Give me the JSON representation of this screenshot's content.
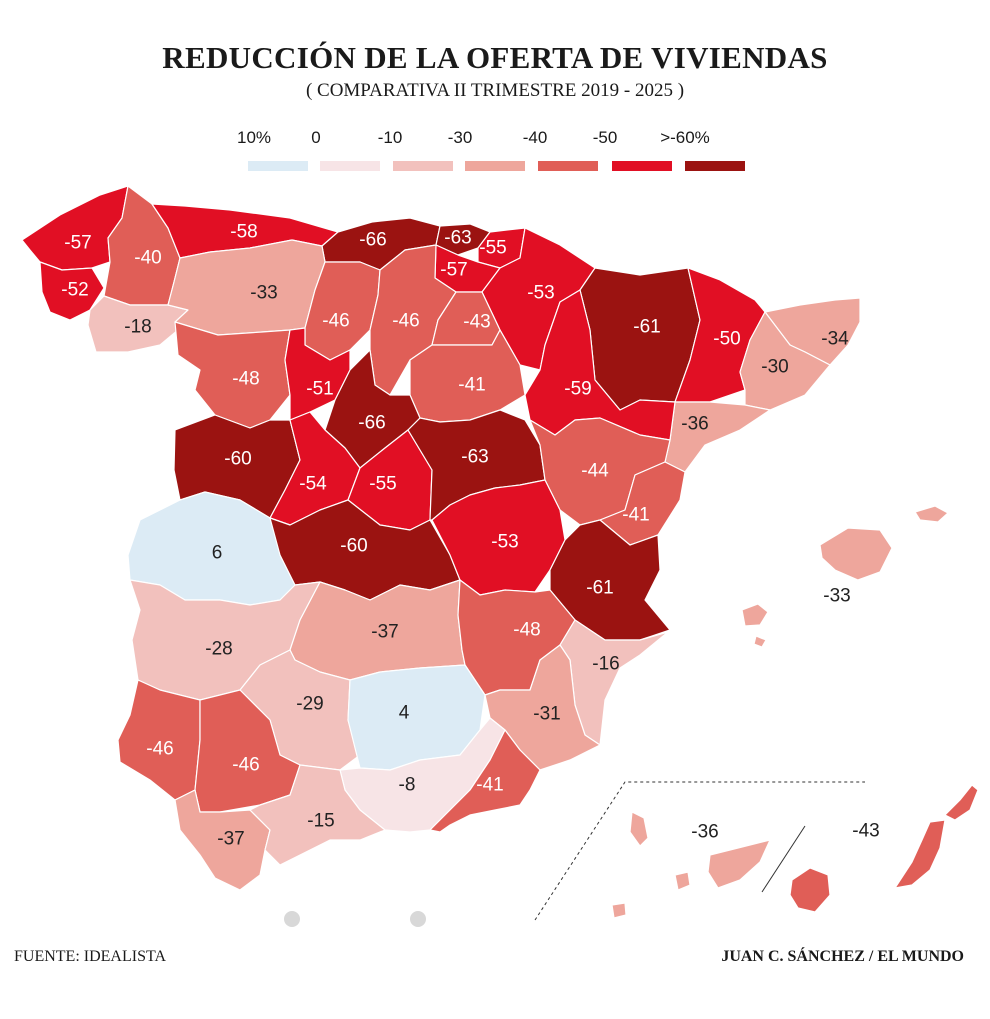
{
  "title": "REDUCCIÓN DE LA OFERTA DE VIVIENDAS",
  "subtitle": "( COMPARATIVA II TRIMESTRE 2019 - 2025 )",
  "legend": {
    "labels": [
      "10%",
      "0",
      "-10",
      "-30",
      "-40",
      "-50",
      ">-60%"
    ],
    "colors": [
      "#dcebf5",
      "#f7e4e6",
      "#f2c1bd",
      "#eea69c",
      "#e05e57",
      "#e10f24",
      "#9b1311"
    ]
  },
  "regions": [
    {
      "id": "coruna",
      "value": "-57",
      "color": "#e10f24"
    },
    {
      "id": "lugo",
      "value": "-40",
      "color": "#e05e57"
    },
    {
      "id": "asturias",
      "value": "-58",
      "color": "#e10f24"
    },
    {
      "id": "cantabria",
      "value": "-66",
      "color": "#9b1311"
    },
    {
      "id": "vizcaya",
      "value": "-63",
      "color": "#9b1311"
    },
    {
      "id": "guipuzcoa",
      "value": "-55",
      "color": "#e10f24"
    },
    {
      "id": "alava",
      "value": "-57",
      "color": "#e10f24"
    },
    {
      "id": "navarra",
      "value": "-53",
      "color": "#e10f24"
    },
    {
      "id": "pontevedra",
      "value": "-52",
      "color": "#e10f24"
    },
    {
      "id": "orense",
      "value": "-18",
      "color": "#f2c1bd"
    },
    {
      "id": "leon",
      "value": "-33",
      "color": "#eea69c"
    },
    {
      "id": "palencia",
      "value": "-46",
      "color": "#e05e57"
    },
    {
      "id": "burgos",
      "value": "-46",
      "color": "#e05e57"
    },
    {
      "id": "larioja",
      "value": "-43",
      "color": "#e05e57"
    },
    {
      "id": "huesca",
      "value": "-61",
      "color": "#9b1311"
    },
    {
      "id": "lleida",
      "value": "-50",
      "color": "#e10f24"
    },
    {
      "id": "girona",
      "value": "-34",
      "color": "#eea69c"
    },
    {
      "id": "barcelona",
      "value": "-30",
      "color": "#eea69c"
    },
    {
      "id": "zamora",
      "value": "-48",
      "color": "#e05e57"
    },
    {
      "id": "valladolid",
      "value": "-51",
      "color": "#e10f24"
    },
    {
      "id": "soria",
      "value": "-41",
      "color": "#e05e57"
    },
    {
      "id": "zaragoza",
      "value": "-59",
      "color": "#e10f24"
    },
    {
      "id": "tarragona",
      "value": "-36",
      "color": "#eea69c"
    },
    {
      "id": "salamanca",
      "value": "-60",
      "color": "#9b1311"
    },
    {
      "id": "segovia",
      "value": "-66",
      "color": "#9b1311"
    },
    {
      "id": "avila",
      "value": "-54",
      "color": "#e10f24"
    },
    {
      "id": "madrid",
      "value": "-55",
      "color": "#e10f24"
    },
    {
      "id": "guadalajara",
      "value": "-63",
      "color": "#9b1311"
    },
    {
      "id": "teruel",
      "value": "-44",
      "color": "#e05e57"
    },
    {
      "id": "castellon",
      "value": "-41",
      "color": "#e05e57"
    },
    {
      "id": "caceres",
      "value": "6",
      "color": "#dcebf5"
    },
    {
      "id": "toledo",
      "value": "-60",
      "color": "#9b1311"
    },
    {
      "id": "cuenca",
      "value": "-53",
      "color": "#e10f24"
    },
    {
      "id": "valencia",
      "value": "-61",
      "color": "#9b1311"
    },
    {
      "id": "badajoz",
      "value": "-28",
      "color": "#f2c1bd"
    },
    {
      "id": "ciudadreal",
      "value": "-37",
      "color": "#eea69c"
    },
    {
      "id": "albacete",
      "value": "-48",
      "color": "#e05e57"
    },
    {
      "id": "alicante",
      "value": "-16",
      "color": "#f2c1bd"
    },
    {
      "id": "cordoba",
      "value": "-29",
      "color": "#f2c1bd"
    },
    {
      "id": "jaen",
      "value": "4",
      "color": "#dcebf5"
    },
    {
      "id": "murcia",
      "value": "-31",
      "color": "#eea69c"
    },
    {
      "id": "huelva",
      "value": "-46",
      "color": "#e05e57"
    },
    {
      "id": "sevilla",
      "value": "-46",
      "color": "#e05e57"
    },
    {
      "id": "granada",
      "value": "-8",
      "color": "#f7e4e6"
    },
    {
      "id": "almeria",
      "value": "-41",
      "color": "#e05e57"
    },
    {
      "id": "cadiz",
      "value": "-37",
      "color": "#eea69c"
    },
    {
      "id": "malaga",
      "value": "-15",
      "color": "#f2c1bd"
    },
    {
      "id": "baleares",
      "value": "-33",
      "color": "#eea69c"
    },
    {
      "id": "tenerife",
      "value": "-36",
      "color": "#eea69c"
    },
    {
      "id": "laspalmas",
      "value": "-43",
      "color": "#e05e57"
    }
  ],
  "footer": {
    "source": "FUENTE: IDEALISTA",
    "credit": "JUAN C. SÁNCHEZ / EL MUNDO"
  }
}
